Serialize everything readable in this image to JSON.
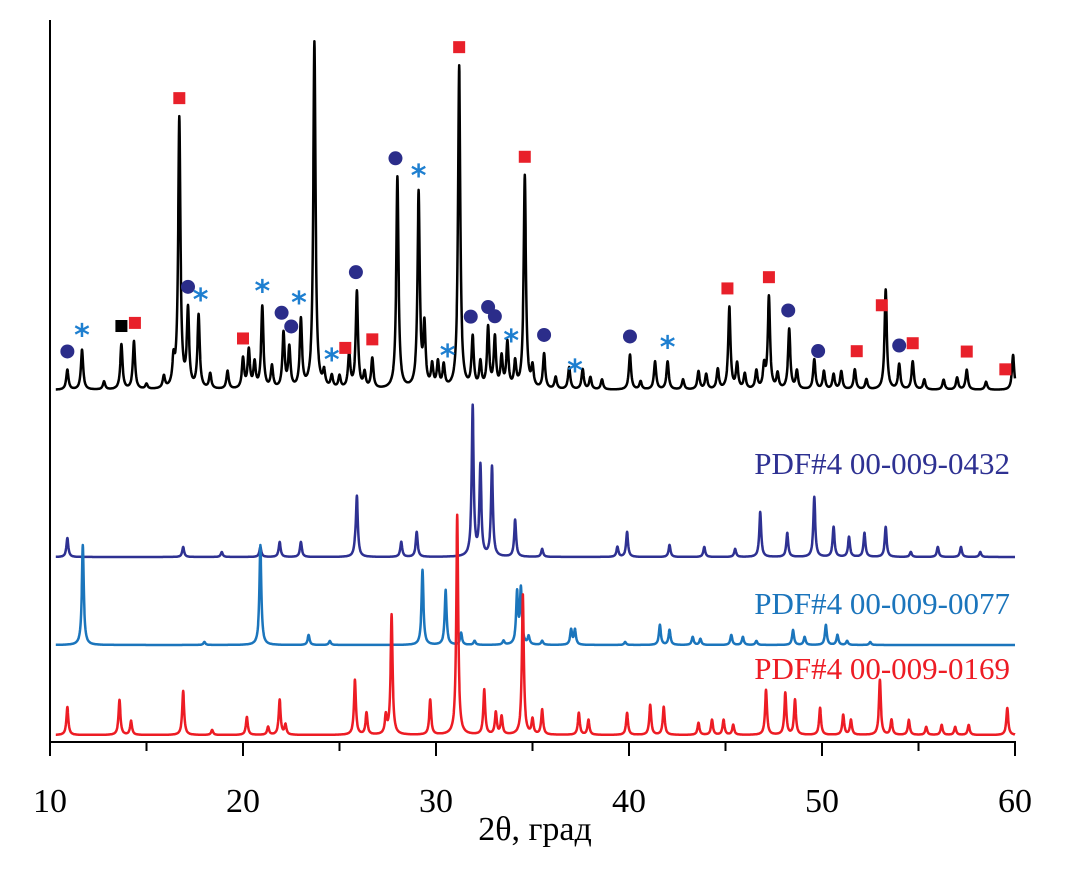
{
  "chart_data": {
    "type": "line",
    "title": "",
    "xlabel": "2θ, град",
    "ylabel": "",
    "xlim": [
      10,
      60
    ],
    "x_ticks": [
      "10",
      "20",
      "30",
      "40",
      "50",
      "60"
    ],
    "x_minor_tick_step": 5,
    "grid": false,
    "y_axis_labels": false,
    "layout": "stacked patterns, sample on top, references below",
    "series": [
      {
        "id": "sample",
        "name": "",
        "color": "#000000",
        "peaks_2theta_intensity": [
          [
            10.9,
            20
          ],
          [
            11.66,
            40
          ],
          [
            12.8,
            8
          ],
          [
            13.7,
            45
          ],
          [
            14.35,
            48
          ],
          [
            15.0,
            5
          ],
          [
            15.9,
            12
          ],
          [
            16.4,
            25
          ],
          [
            16.7,
            270
          ],
          [
            17.15,
            77
          ],
          [
            17.7,
            73
          ],
          [
            18.3,
            15
          ],
          [
            19.2,
            18
          ],
          [
            20.0,
            30
          ],
          [
            20.3,
            38
          ],
          [
            20.6,
            25
          ],
          [
            21.0,
            82
          ],
          [
            21.5,
            22
          ],
          [
            22.1,
            55
          ],
          [
            22.4,
            40
          ],
          [
            23.0,
            68
          ],
          [
            23.7,
            347
          ],
          [
            24.2,
            15
          ],
          [
            24.6,
            12
          ],
          [
            25.0,
            12
          ],
          [
            25.5,
            35
          ],
          [
            25.9,
            97
          ],
          [
            26.3,
            15
          ],
          [
            26.7,
            30
          ],
          [
            28.0,
            212
          ],
          [
            29.1,
            195
          ],
          [
            29.4,
            60
          ],
          [
            29.8,
            22
          ],
          [
            30.1,
            25
          ],
          [
            30.4,
            22
          ],
          [
            31.2,
            323
          ],
          [
            31.9,
            50
          ],
          [
            32.3,
            25
          ],
          [
            32.7,
            60
          ],
          [
            33.05,
            50
          ],
          [
            33.4,
            30
          ],
          [
            33.7,
            45
          ],
          [
            34.1,
            25
          ],
          [
            34.6,
            213
          ],
          [
            35.0,
            20
          ],
          [
            35.6,
            35
          ],
          [
            36.2,
            12
          ],
          [
            36.9,
            22
          ],
          [
            37.6,
            20
          ],
          [
            38.0,
            12
          ],
          [
            38.6,
            10
          ],
          [
            40.05,
            35
          ],
          [
            40.6,
            8
          ],
          [
            41.35,
            28
          ],
          [
            42.0,
            28
          ],
          [
            42.8,
            10
          ],
          [
            43.6,
            18
          ],
          [
            44.0,
            15
          ],
          [
            44.6,
            20
          ],
          [
            45.2,
            82
          ],
          [
            45.6,
            25
          ],
          [
            46.0,
            15
          ],
          [
            46.6,
            18
          ],
          [
            47.0,
            22
          ],
          [
            47.25,
            92
          ],
          [
            47.7,
            15
          ],
          [
            48.3,
            60
          ],
          [
            48.7,
            18
          ],
          [
            49.6,
            30
          ],
          [
            50.1,
            18
          ],
          [
            50.6,
            15
          ],
          [
            51.0,
            18
          ],
          [
            51.7,
            20
          ],
          [
            52.3,
            10
          ],
          [
            53.3,
            100
          ],
          [
            54.0,
            25
          ],
          [
            54.7,
            28
          ],
          [
            55.3,
            10
          ],
          [
            56.3,
            10
          ],
          [
            57.0,
            12
          ],
          [
            57.5,
            20
          ],
          [
            58.5,
            8
          ],
          [
            59.9,
            35
          ]
        ],
        "markers": [
          [
            10.9,
            "circle"
          ],
          [
            11.66,
            "asterisk"
          ],
          [
            13.7,
            "square-black"
          ],
          [
            14.4,
            "square-red"
          ],
          [
            16.7,
            "square-red"
          ],
          [
            17.15,
            "circle"
          ],
          [
            17.8,
            "asterisk"
          ],
          [
            20.0,
            "square-red"
          ],
          [
            21.0,
            "asterisk"
          ],
          [
            22.0,
            "circle"
          ],
          [
            22.5,
            "circle"
          ],
          [
            22.9,
            "asterisk"
          ],
          [
            24.6,
            "asterisk"
          ],
          [
            25.3,
            "square-red"
          ],
          [
            25.85,
            "circle"
          ],
          [
            26.7,
            "square-red"
          ],
          [
            27.9,
            "circle"
          ],
          [
            29.1,
            "asterisk"
          ],
          [
            30.6,
            "asterisk"
          ],
          [
            31.2,
            "square-red"
          ],
          [
            31.8,
            "circle"
          ],
          [
            32.7,
            "circle"
          ],
          [
            33.05,
            "circle"
          ],
          [
            33.9,
            "asterisk"
          ],
          [
            34.6,
            "square-red"
          ],
          [
            35.6,
            "circle"
          ],
          [
            37.2,
            "asterisk"
          ],
          [
            40.05,
            "circle"
          ],
          [
            42.0,
            "asterisk"
          ],
          [
            45.1,
            "square-red"
          ],
          [
            47.25,
            "square-red"
          ],
          [
            48.25,
            "circle"
          ],
          [
            49.8,
            "circle"
          ],
          [
            51.8,
            "square-red"
          ],
          [
            53.1,
            "square-red"
          ],
          [
            54.0,
            "circle"
          ],
          [
            54.7,
            "square-red"
          ],
          [
            57.5,
            "square-red"
          ],
          [
            59.5,
            "square-red"
          ]
        ]
      },
      {
        "id": "ref-0432",
        "name": "PDF#4 00-009-0432",
        "color": "#2e3192",
        "peaks_2theta_intensity": [
          [
            10.9,
            19
          ],
          [
            16.9,
            10
          ],
          [
            18.9,
            5
          ],
          [
            20.9,
            10
          ],
          [
            21.9,
            15
          ],
          [
            23.0,
            15
          ],
          [
            25.8,
            5
          ],
          [
            25.9,
            60
          ],
          [
            28.2,
            15
          ],
          [
            29.0,
            25
          ],
          [
            31.9,
            150
          ],
          [
            32.3,
            90
          ],
          [
            32.9,
            90
          ],
          [
            34.1,
            37
          ],
          [
            35.5,
            8
          ],
          [
            39.4,
            10
          ],
          [
            39.9,
            25
          ],
          [
            42.1,
            12
          ],
          [
            43.9,
            10
          ],
          [
            45.5,
            8
          ],
          [
            46.8,
            45
          ],
          [
            48.2,
            24
          ],
          [
            49.6,
            60
          ],
          [
            50.6,
            30
          ],
          [
            51.4,
            20
          ],
          [
            52.2,
            24
          ],
          [
            53.3,
            30
          ],
          [
            54.6,
            5
          ],
          [
            56.0,
            10
          ],
          [
            57.2,
            10
          ],
          [
            58.2,
            5
          ]
        ]
      },
      {
        "id": "ref-0077",
        "name": "PDF#4 00-009-0077",
        "color": "#1b75bc",
        "peaks_2theta_intensity": [
          [
            11.7,
            100
          ],
          [
            18.0,
            3
          ],
          [
            20.9,
            100
          ],
          [
            23.4,
            10
          ],
          [
            24.5,
            4
          ],
          [
            29.3,
            75
          ],
          [
            30.5,
            55
          ],
          [
            31.3,
            12
          ],
          [
            32.0,
            4
          ],
          [
            33.5,
            4
          ],
          [
            34.2,
            51
          ],
          [
            34.4,
            55
          ],
          [
            34.8,
            8
          ],
          [
            35.5,
            4
          ],
          [
            37.0,
            15
          ],
          [
            37.2,
            15
          ],
          [
            39.8,
            3
          ],
          [
            41.6,
            20
          ],
          [
            42.1,
            15
          ],
          [
            43.3,
            8
          ],
          [
            43.7,
            6
          ],
          [
            45.3,
            10
          ],
          [
            45.9,
            8
          ],
          [
            46.6,
            4
          ],
          [
            48.5,
            15
          ],
          [
            49.1,
            8
          ],
          [
            50.2,
            20
          ],
          [
            50.8,
            10
          ],
          [
            51.3,
            4
          ],
          [
            52.5,
            3
          ]
        ]
      },
      {
        "id": "ref-0169",
        "name": "PDF#4 00-009-0169",
        "color": "#ed1c24",
        "peaks_2theta_intensity": [
          [
            10.9,
            28
          ],
          [
            13.6,
            35
          ],
          [
            14.2,
            14
          ],
          [
            16.9,
            44
          ],
          [
            18.4,
            5
          ],
          [
            20.2,
            18
          ],
          [
            21.3,
            8
          ],
          [
            21.9,
            35
          ],
          [
            22.2,
            10
          ],
          [
            25.8,
            55
          ],
          [
            26.4,
            22
          ],
          [
            27.4,
            18
          ],
          [
            27.7,
            120
          ],
          [
            29.7,
            35
          ],
          [
            31.1,
            220
          ],
          [
            32.5,
            45
          ],
          [
            33.1,
            22
          ],
          [
            33.4,
            18
          ],
          [
            34.5,
            140
          ],
          [
            35.0,
            15
          ],
          [
            35.5,
            25
          ],
          [
            37.4,
            22
          ],
          [
            37.9,
            15
          ],
          [
            39.9,
            22
          ],
          [
            41.1,
            30
          ],
          [
            41.8,
            28
          ],
          [
            43.6,
            12
          ],
          [
            44.3,
            15
          ],
          [
            44.9,
            15
          ],
          [
            45.4,
            10
          ],
          [
            47.1,
            45
          ],
          [
            48.1,
            42
          ],
          [
            48.6,
            35
          ],
          [
            49.9,
            27
          ],
          [
            51.1,
            20
          ],
          [
            51.5,
            15
          ],
          [
            53.0,
            55
          ],
          [
            53.6,
            15
          ],
          [
            54.5,
            15
          ],
          [
            55.4,
            8
          ],
          [
            56.2,
            10
          ],
          [
            56.9,
            8
          ],
          [
            57.6,
            10
          ],
          [
            59.6,
            27
          ]
        ]
      }
    ],
    "marker_colors": {
      "circle": "#2b2d8a",
      "asterisk": "#1e7fd0",
      "square-red": "#e8202a",
      "square-black": "#000000"
    }
  }
}
